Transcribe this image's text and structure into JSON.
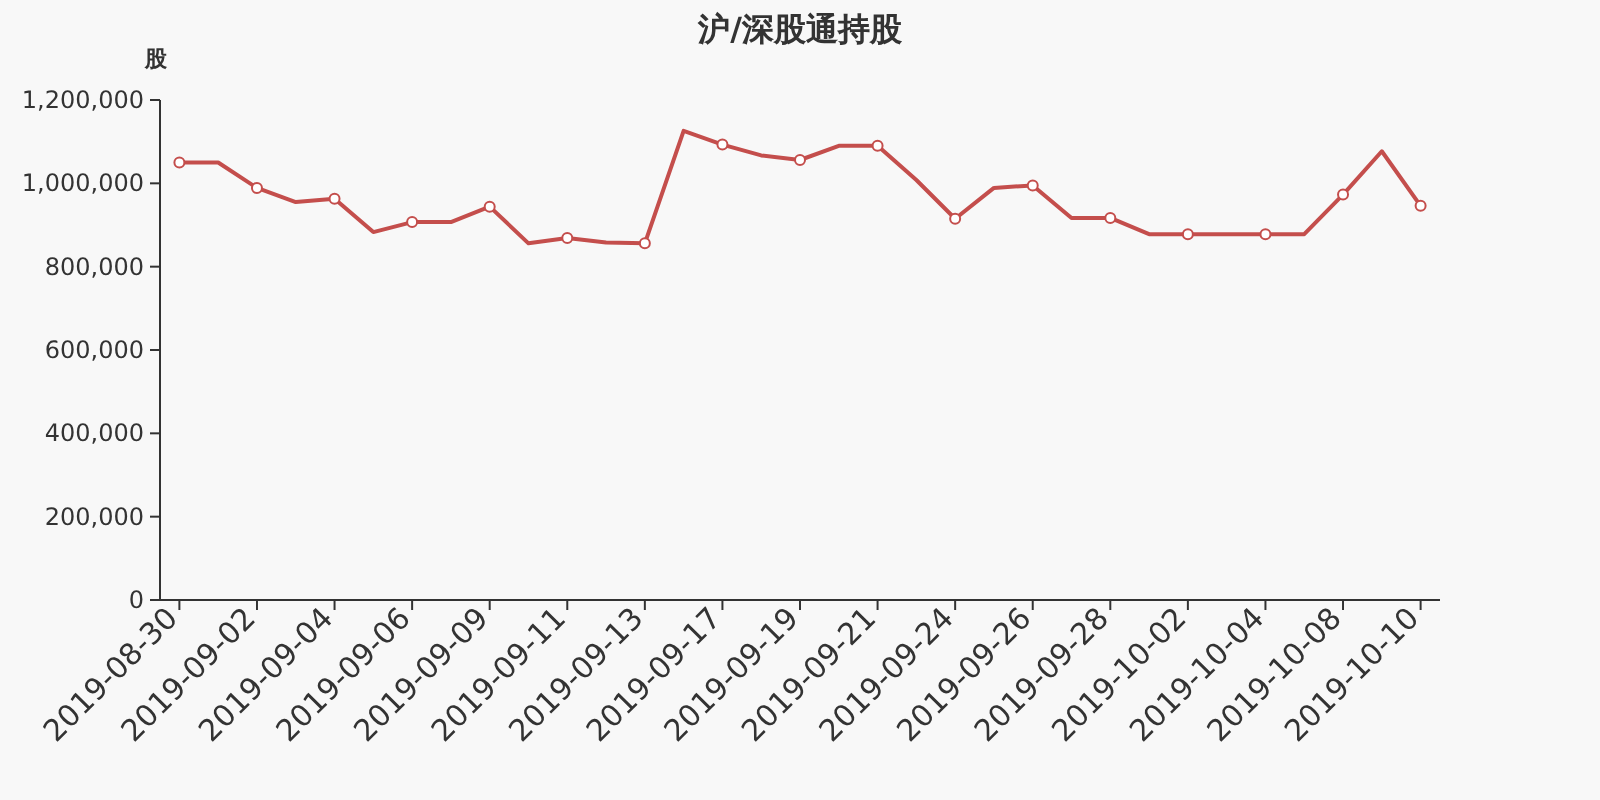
{
  "chart_data": {
    "type": "line",
    "title": "沪/深股通持股",
    "ylabel": "股",
    "categories": [
      "2019-08-30",
      null,
      "2019-09-02",
      null,
      "2019-09-04",
      null,
      "2019-09-06",
      null,
      "2019-09-09",
      null,
      "2019-09-11",
      null,
      "2019-09-13",
      null,
      "2019-09-17",
      null,
      "2019-09-19",
      null,
      "2019-09-21",
      null,
      "2019-09-24",
      null,
      "2019-09-26",
      null,
      "2019-09-28",
      null,
      "2019-10-02",
      null,
      "2019-10-04",
      null,
      "2019-10-08",
      null,
      "2019-10-10"
    ],
    "series": [
      {
        "color": "#c44e4c",
        "values": [
          1050000,
          1050000,
          989000,
          955000,
          963000,
          883000,
          907000,
          907000,
          944000,
          856000,
          869000,
          858000,
          856000,
          1126000,
          1093000,
          1067000,
          1056000,
          1090000,
          1090000,
          1008000,
          915000,
          989000,
          995000,
          917000,
          917000,
          878000,
          878000,
          878000,
          878000,
          878000,
          973000,
          1077000,
          946000
        ]
      }
    ],
    "ylim": [
      0,
      1200000
    ],
    "yticks": [
      0,
      {
        "value": 200000,
        "label": "200,000"
      },
      {
        "value": 400000,
        "label": "400,000"
      },
      {
        "value": 600000,
        "label": "600,000"
      },
      {
        "value": 800000,
        "label": "800,000"
      },
      {
        "value": 1000000,
        "label": "1,000,000"
      },
      {
        "value": 1200000,
        "label": "1,200,000"
      }
    ],
    "marker": "circle",
    "line_style": "solid"
  }
}
